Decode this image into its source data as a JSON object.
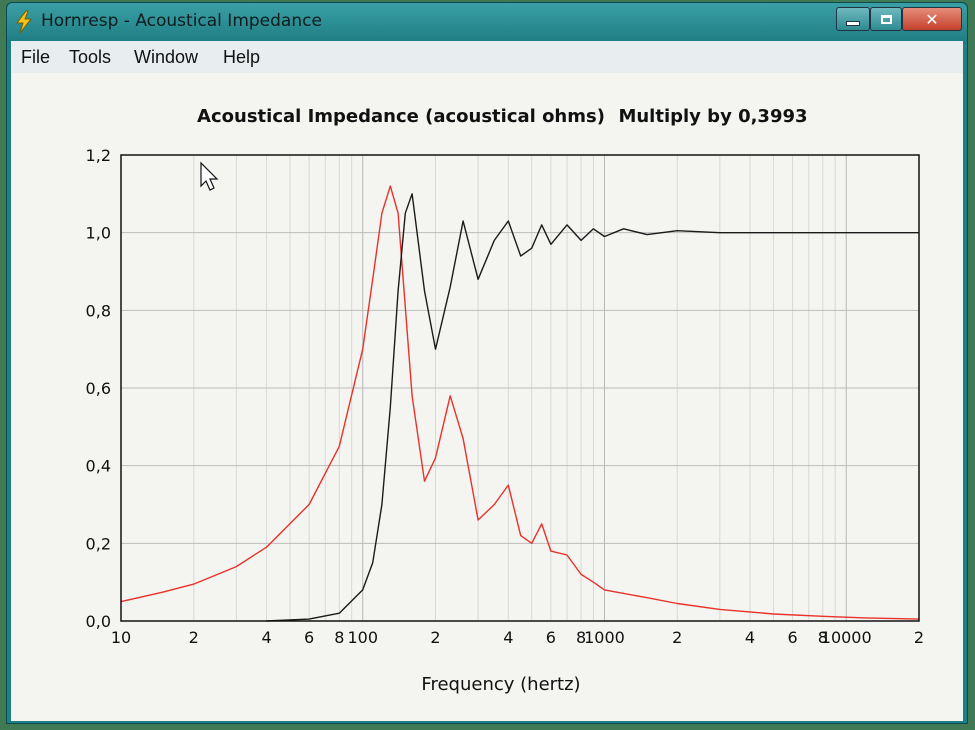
{
  "window": {
    "title": "Hornresp - Acoustical Impedance",
    "app_icon": "lightning-bolt-icon",
    "controls": {
      "minimize": "minimize-icon",
      "maximize": "maximize-icon",
      "close": "close-icon"
    }
  },
  "menu": {
    "items": [
      {
        "label": "File"
      },
      {
        "label": "Tools"
      },
      {
        "label": "Window"
      },
      {
        "label": "Help"
      }
    ]
  },
  "chart_data": {
    "type": "line",
    "title": "Acoustical Impedance (acoustical ohms)",
    "multiplier_label": "Multiply by 0,3993",
    "xlabel": "Frequency (hertz)",
    "ylabel": "",
    "x_scale": "log",
    "xlim": [
      10,
      20000
    ],
    "ylim": [
      0,
      1.2
    ],
    "grid": true,
    "y_ticks": [
      {
        "value": 0.0,
        "label": "0,0"
      },
      {
        "value": 0.2,
        "label": "0,2"
      },
      {
        "value": 0.4,
        "label": "0,4"
      },
      {
        "value": 0.6,
        "label": "0,6"
      },
      {
        "value": 0.8,
        "label": "0,8"
      },
      {
        "value": 1.0,
        "label": "1,0"
      },
      {
        "value": 1.2,
        "label": "1,2"
      }
    ],
    "x_ticks": [
      {
        "value": 10,
        "label": "10"
      },
      {
        "value": 20,
        "label": "2"
      },
      {
        "value": 40,
        "label": "4"
      },
      {
        "value": 60,
        "label": "6"
      },
      {
        "value": 80,
        "label": "8"
      },
      {
        "value": 100,
        "label": "100"
      },
      {
        "value": 200,
        "label": "2"
      },
      {
        "value": 400,
        "label": "4"
      },
      {
        "value": 600,
        "label": "6"
      },
      {
        "value": 800,
        "label": "8"
      },
      {
        "value": 1000,
        "label": "1000"
      },
      {
        "value": 2000,
        "label": "2"
      },
      {
        "value": 4000,
        "label": "4"
      },
      {
        "value": 6000,
        "label": "6"
      },
      {
        "value": 8000,
        "label": "8"
      },
      {
        "value": 10000,
        "label": "10000"
      },
      {
        "value": 20000,
        "label": "2"
      }
    ],
    "series": [
      {
        "color": "#e8322a",
        "x": [
          10,
          15,
          20,
          30,
          40,
          60,
          80,
          100,
          110,
          120,
          130,
          140,
          160,
          180,
          200,
          230,
          260,
          300,
          350,
          400,
          450,
          500,
          550,
          600,
          700,
          800,
          900,
          1000,
          1500,
          2000,
          3000,
          5000,
          8000,
          12000,
          20000
        ],
        "y": [
          0.05,
          0.075,
          0.095,
          0.14,
          0.19,
          0.3,
          0.45,
          0.7,
          0.88,
          1.05,
          1.12,
          1.05,
          0.58,
          0.36,
          0.42,
          0.58,
          0.47,
          0.26,
          0.3,
          0.35,
          0.22,
          0.2,
          0.25,
          0.18,
          0.17,
          0.12,
          0.1,
          0.08,
          0.06,
          0.045,
          0.03,
          0.018,
          0.012,
          0.008,
          0.005
        ]
      },
      {
        "color": "#1a1a1a",
        "x": [
          40,
          60,
          80,
          100,
          110,
          120,
          130,
          140,
          150,
          160,
          180,
          200,
          230,
          260,
          300,
          350,
          400,
          450,
          500,
          550,
          600,
          700,
          800,
          900,
          1000,
          1200,
          1500,
          2000,
          3000,
          5000,
          10000,
          20000
        ],
        "y": [
          0.0,
          0.005,
          0.02,
          0.08,
          0.15,
          0.3,
          0.55,
          0.85,
          1.05,
          1.1,
          0.85,
          0.7,
          0.86,
          1.03,
          0.88,
          0.98,
          1.03,
          0.94,
          0.96,
          1.02,
          0.97,
          1.02,
          0.98,
          1.01,
          0.99,
          1.01,
          0.995,
          1.005,
          1.0,
          1.0,
          1.0,
          1.0
        ]
      }
    ]
  }
}
